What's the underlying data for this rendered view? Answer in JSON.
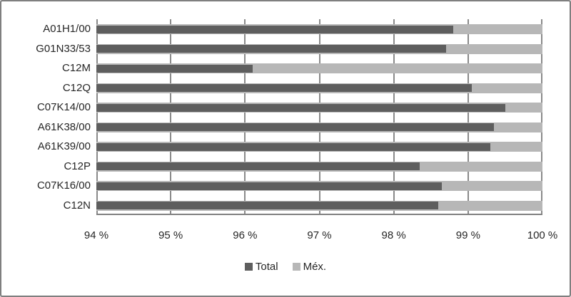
{
  "chart_data": {
    "type": "bar",
    "orientation": "horizontal",
    "title": "",
    "xlabel": "",
    "ylabel": "",
    "categories": [
      "A01H1/00",
      "G01N33/53",
      "C12M",
      "C12Q",
      "C07K14/00",
      "A61K38/00",
      "A61K39/00",
      "C12P",
      "C07K16/00",
      "C12N"
    ],
    "series": [
      {
        "name": "Total",
        "color": "#5e5e5e",
        "values": [
          98.8,
          98.7,
          96.1,
          99.05,
          99.5,
          99.35,
          99.3,
          98.35,
          98.65,
          98.6
        ]
      },
      {
        "name": "Méx.",
        "color": "#b7b7b7",
        "values": [
          100,
          100,
          100,
          100,
          100,
          100,
          100,
          100,
          100,
          100
        ]
      }
    ],
    "x_ticks": [
      "94 %",
      "95 %",
      "96 %",
      "97 %",
      "98 %",
      "99 %",
      "100 %"
    ],
    "x_tick_values": [
      94,
      95,
      96,
      97,
      98,
      99,
      100
    ],
    "xlim": [
      94,
      100
    ],
    "grid": "vertical",
    "legend_position": "bottom"
  },
  "colors": {
    "background": "#ffffff",
    "border": "#7f7f7f",
    "gridline": "#8a8a8a",
    "axis_line": "#808080",
    "text": "#262626",
    "series_total": "#5e5e5e",
    "series_mex": "#b7b7b7"
  }
}
